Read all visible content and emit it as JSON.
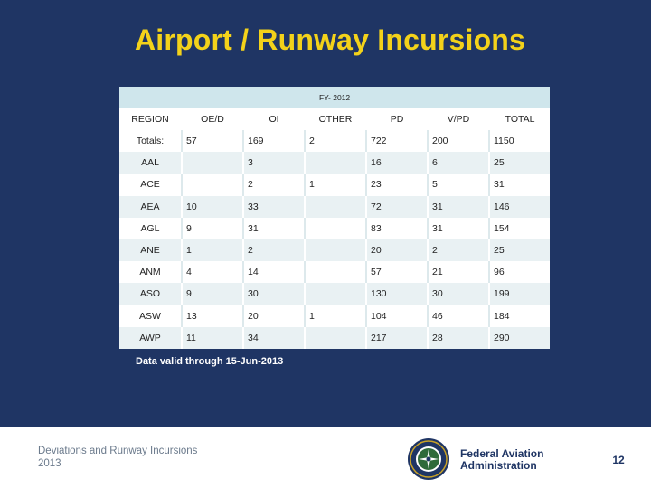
{
  "title": "Airport / Runway Incursions",
  "table": {
    "period": "FY- 2012",
    "columns": [
      "REGION",
      "OE/D",
      "OI",
      "OTHER",
      "PD",
      "V/PD",
      "TOTAL"
    ],
    "totals": {
      "label": "Totals:",
      "cells": [
        "57",
        "169",
        "2",
        "722",
        "200",
        "1150"
      ]
    },
    "rows": [
      {
        "region": "AAL",
        "cells": [
          "",
          "3",
          "",
          "16",
          "6",
          "25"
        ]
      },
      {
        "region": "ACE",
        "cells": [
          "",
          "2",
          "1",
          "23",
          "5",
          "31"
        ]
      },
      {
        "region": "AEA",
        "cells": [
          "10",
          "33",
          "",
          "72",
          "31",
          "146"
        ]
      },
      {
        "region": "AGL",
        "cells": [
          "9",
          "31",
          "",
          "83",
          "31",
          "154"
        ]
      },
      {
        "region": "ANE",
        "cells": [
          "1",
          "2",
          "",
          "20",
          "2",
          "25"
        ]
      },
      {
        "region": "ANM",
        "cells": [
          "4",
          "14",
          "",
          "57",
          "21",
          "96"
        ]
      },
      {
        "region": "ASO",
        "cells": [
          "9",
          "30",
          "",
          "130",
          "30",
          "199"
        ]
      },
      {
        "region": "ASW",
        "cells": [
          "13",
          "20",
          "1",
          "104",
          "46",
          "184"
        ]
      },
      {
        "region": "AWP",
        "cells": [
          "11",
          "34",
          "",
          "217",
          "28",
          "290"
        ]
      }
    ]
  },
  "footnote": "Data valid through 15-Jun-2013",
  "footer": {
    "presentation_title": "Deviations and Runway Incursions",
    "year": "2013",
    "agency_line1": "Federal Aviation",
    "agency_line2": "Administration",
    "page_number": "12",
    "seal_icon": "faa-seal-icon"
  }
}
